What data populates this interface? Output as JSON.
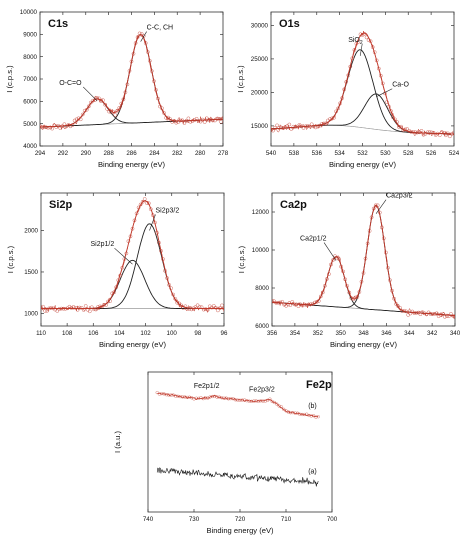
{
  "figure": {
    "panels": [
      {
        "panel_label": "C1s"
      },
      {
        "panel_label": "O1s"
      },
      {
        "panel_label": "Si2p"
      },
      {
        "panel_label": "Ca2p"
      },
      {
        "panel_label": "Fe2p"
      }
    ]
  },
  "chart_data": [
    {
      "type": "line",
      "title": "C1s",
      "xlabel": "Binding energy (eV)",
      "ylabel": "I (c.p.s.)",
      "xlim": [
        294,
        278
      ],
      "ylim": [
        4000,
        10000
      ],
      "x_ticks": [
        294,
        292,
        290,
        288,
        286,
        284,
        282,
        280,
        278
      ],
      "y_ticks": [
        4000,
        5000,
        6000,
        7000,
        8000,
        9000,
        10000
      ],
      "background": {
        "left": 4850,
        "right": 5200
      },
      "peaks": [
        {
          "label": "O-C=O",
          "center": 289.0,
          "height": 1150,
          "fwhm": 2.2
        },
        {
          "label": "C-C, CH",
          "center": 285.2,
          "height": 3950,
          "fwhm": 2.2
        }
      ],
      "series": [
        {
          "role": "experimental",
          "color": "#c0392b",
          "marker": "open-circle"
        },
        {
          "role": "envelope",
          "color": "#c0392b"
        },
        {
          "role": "components",
          "color": "#222222"
        },
        {
          "role": "background",
          "color": "#999999"
        }
      ]
    },
    {
      "type": "line",
      "title": "O1s",
      "xlabel": "Binding energy (eV)",
      "ylabel": "I (c.p.s.)",
      "xlim": [
        540,
        524
      ],
      "ylim": [
        12000,
        32000
      ],
      "x_ticks": [
        540,
        538,
        536,
        534,
        532,
        530,
        528,
        526,
        524
      ],
      "y_ticks": [
        15000,
        20000,
        25000,
        30000
      ],
      "background": {
        "left": 14400,
        "right": 13800,
        "hump_center": 534.5,
        "hump_height": 900,
        "hump_width": 3
      },
      "peaks": [
        {
          "label": "SiO2",
          "label_main": "SiO",
          "label_sub": "2",
          "center": 532.2,
          "height": 11600,
          "fwhm": 2.6
        },
        {
          "label": "Ca-O",
          "center": 530.8,
          "height": 5300,
          "fwhm": 2.4
        }
      ],
      "series": [
        {
          "role": "experimental",
          "color": "#c0392b",
          "marker": "open-circle"
        },
        {
          "role": "envelope",
          "color": "#c0392b"
        },
        {
          "role": "components",
          "color": "#222222"
        },
        {
          "role": "background",
          "color": "#999999"
        }
      ]
    },
    {
      "type": "line",
      "title": "Si2p",
      "xlabel": "Binding energy (eV)",
      "ylabel": "I (c.p.s.)",
      "xlim": [
        110,
        96
      ],
      "ylim": [
        850,
        2450
      ],
      "x_ticks": [
        110,
        108,
        106,
        104,
        102,
        100,
        98,
        96
      ],
      "y_ticks": [
        1000,
        1500,
        2000
      ],
      "background": {
        "left": 1060,
        "right": 1060
      },
      "peaks": [
        {
          "label": "Si2p1/2",
          "center": 103.0,
          "height": 580,
          "fwhm": 2.2
        },
        {
          "label": "Si2p3/2",
          "center": 101.7,
          "height": 1020,
          "fwhm": 2.2
        }
      ],
      "series": [
        {
          "role": "experimental",
          "color": "#c0392b",
          "marker": "open-circle"
        },
        {
          "role": "envelope",
          "color": "#c0392b"
        },
        {
          "role": "components",
          "color": "#222222"
        },
        {
          "role": "background",
          "color": "#999999"
        }
      ]
    },
    {
      "type": "line",
      "title": "Ca2p",
      "xlabel": "Binding energy (eV)",
      "ylabel": "I (c.p.s.)",
      "xlim": [
        356,
        340
      ],
      "ylim": [
        6000,
        13000
      ],
      "x_ticks": [
        356,
        354,
        352,
        350,
        348,
        346,
        344,
        342,
        340
      ],
      "y_ticks": [
        6000,
        8000,
        10000,
        12000
      ],
      "background": {
        "left": 7250,
        "right": 6550
      },
      "peaks": [
        {
          "label": "Ca2p1/2",
          "center": 350.4,
          "height": 2650,
          "fwhm": 1.7
        },
        {
          "label": "Ca2p3/2",
          "center": 346.9,
          "height": 5500,
          "fwhm": 1.8
        }
      ],
      "series": [
        {
          "role": "experimental",
          "color": "#c0392b",
          "marker": "open-circle"
        },
        {
          "role": "envelope",
          "color": "#c0392b"
        },
        {
          "role": "components",
          "color": "#222222"
        },
        {
          "role": "background",
          "color": "#999999"
        }
      ]
    },
    {
      "type": "line",
      "title": "Fe2p",
      "xlabel": "Binding energy (eV)",
      "ylabel": "I (a.u.)",
      "xlim": [
        740,
        700
      ],
      "x_ticks": [
        740,
        730,
        720,
        710,
        700
      ],
      "ylim": [
        0,
        100
      ],
      "annotations": [
        {
          "text": "Fe2p1/2",
          "x": 725.5
        },
        {
          "text": "Fe2p3/2",
          "x": 713.5
        }
      ],
      "series": [
        {
          "name": "(b)",
          "color": "#c0392b",
          "marker": "open-circle",
          "x": [
            738,
            732,
            729,
            727,
            725.5,
            724,
            720,
            717,
            715,
            713.5,
            711.5,
            710,
            707,
            703
          ],
          "y": [
            85,
            82,
            81,
            81.5,
            83,
            81.5,
            80,
            79,
            79.5,
            80.5,
            76,
            72,
            70,
            68
          ]
        },
        {
          "name": "(a)",
          "color": "#111111",
          "x": [
            738,
            730,
            720,
            710,
            703
          ],
          "y": [
            30,
            28,
            25.5,
            23,
            21
          ]
        }
      ]
    }
  ]
}
